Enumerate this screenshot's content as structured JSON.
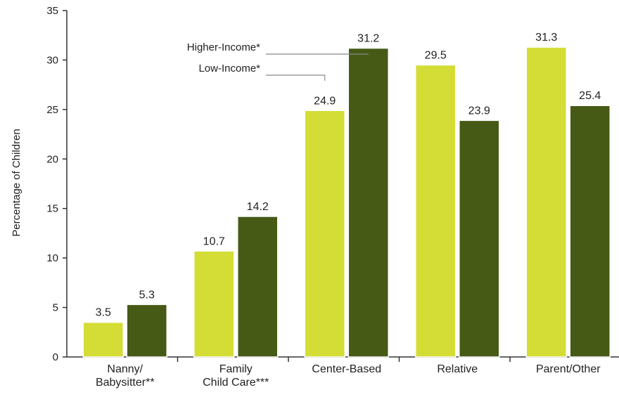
{
  "chart_data": {
    "type": "bar",
    "ylabel": "Percentage of Children",
    "ylim": [
      0,
      35
    ],
    "yticks": [
      0,
      5,
      10,
      15,
      20,
      25,
      30,
      35
    ],
    "categories": [
      [
        "Nanny/",
        "Babysitter**"
      ],
      [
        "Family",
        "Child Care***"
      ],
      [
        "Center-Based"
      ],
      [
        "Relative"
      ],
      [
        "Parent/Other"
      ]
    ],
    "series": [
      {
        "name": "Low-Income*",
        "color": "#d4dd35",
        "values": [
          3.5,
          10.7,
          24.9,
          29.5,
          31.3
        ],
        "labels": [
          "3.5",
          "10.7",
          "24.9",
          "29.5",
          "31.3"
        ]
      },
      {
        "name": "Higher-Income*",
        "color": "#465a16",
        "values": [
          5.3,
          14.2,
          31.2,
          23.9,
          25.4
        ],
        "labels": [
          "5.3",
          "14.2",
          "31.2",
          "23.9",
          "25.4"
        ]
      }
    ],
    "legend": "inline leader lines near the Center-Based bars",
    "grid": false
  }
}
